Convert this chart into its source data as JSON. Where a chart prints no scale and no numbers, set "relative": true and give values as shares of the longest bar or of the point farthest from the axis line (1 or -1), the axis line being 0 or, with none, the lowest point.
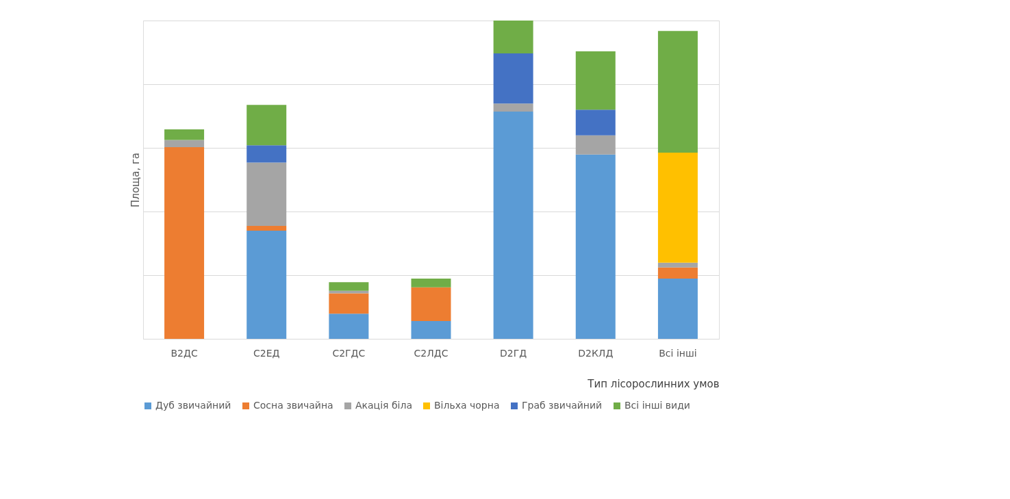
{
  "chart_data": {
    "type": "bar",
    "stacked": true,
    "relative": true,
    "xlabel": "Тип лісорослинних умов",
    "ylabel": "Площа, га",
    "grid": "y",
    "legend": "bottom",
    "categories": [
      "B2ДС",
      "C2ЕД",
      "C2ГДС",
      "C2ЛДС",
      "D2ГД",
      "D2КЛД",
      "Всі інші"
    ],
    "series": [
      {
        "name": "Дуб звичайний",
        "color": "#5b9bd5",
        "values": [
          0,
          0.34,
          0.079,
          0.056,
          0.714,
          0.579,
          0.189
        ]
      },
      {
        "name": "Сосна звичайна",
        "color": "#ed7d31",
        "values": [
          0.602,
          0.015,
          0.064,
          0.106,
          0,
          0,
          0.035
        ]
      },
      {
        "name": "Акація біла",
        "color": "#a5a5a5",
        "values": [
          0.023,
          0.199,
          0.008,
          null,
          0.025,
          0.06,
          0.015
        ]
      },
      {
        "name": "Вільха чорна",
        "color": "#ffc000",
        "values": [
          0,
          0,
          0,
          0,
          0,
          0,
          0.346
        ]
      },
      {
        "name": "Граб звичайний",
        "color": "#4472c4",
        "values": [
          0,
          0.054,
          0,
          0,
          0.158,
          0.081,
          0
        ]
      },
      {
        "name": "Всі інші види",
        "color": "#70ad47",
        "values": [
          0.033,
          0.127,
          0.027,
          0.027,
          0.103,
          0.183,
          0.382
        ]
      }
    ]
  }
}
